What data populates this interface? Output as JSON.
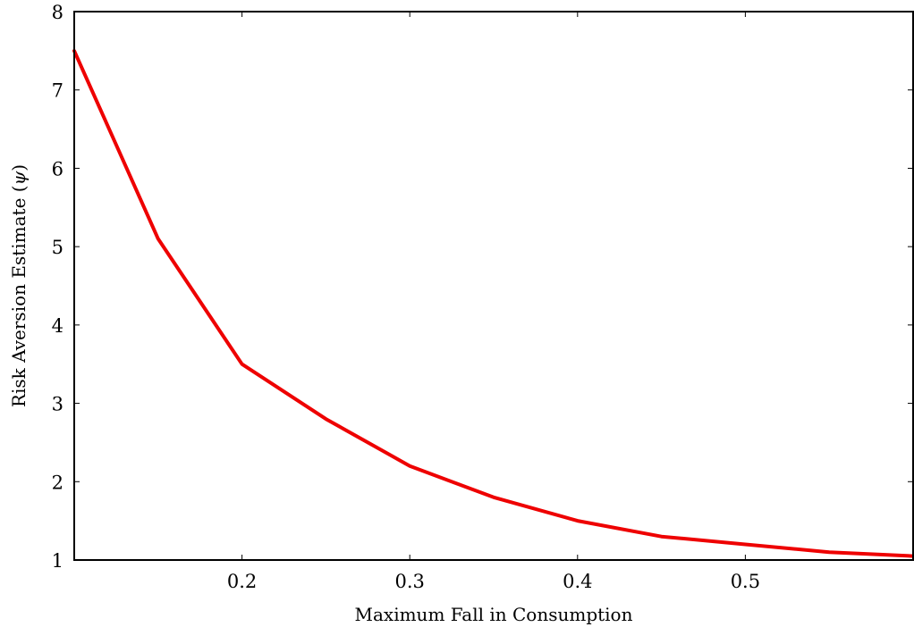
{
  "chart_data": {
    "type": "line",
    "xlabel": "Maximum Fall in Consumption",
    "ylabel_text": "Risk Aversion Estimate (",
    "ylabel_symbol": "ψ",
    "ylabel_close": ")",
    "xlim": [
      0.1,
      0.6
    ],
    "ylim": [
      1,
      8
    ],
    "x_ticks": [
      0.2,
      0.3,
      0.4,
      0.5
    ],
    "x_tick_labels": [
      "0.2",
      "0.3",
      "0.4",
      "0.5"
    ],
    "y_ticks": [
      1,
      2,
      3,
      4,
      5,
      6,
      7,
      8
    ],
    "y_tick_labels": [
      "1",
      "2",
      "3",
      "4",
      "5",
      "6",
      "7",
      "8"
    ],
    "grid": false,
    "series": [
      {
        "color": "#ee0000",
        "x": [
          0.1,
          0.15,
          0.2,
          0.25,
          0.3,
          0.35,
          0.4,
          0.45,
          0.5,
          0.55,
          0.6
        ],
        "y": [
          7.5,
          5.1,
          3.5,
          2.8,
          2.2,
          1.8,
          1.5,
          1.3,
          1.2,
          1.1,
          1.05
        ]
      }
    ]
  }
}
